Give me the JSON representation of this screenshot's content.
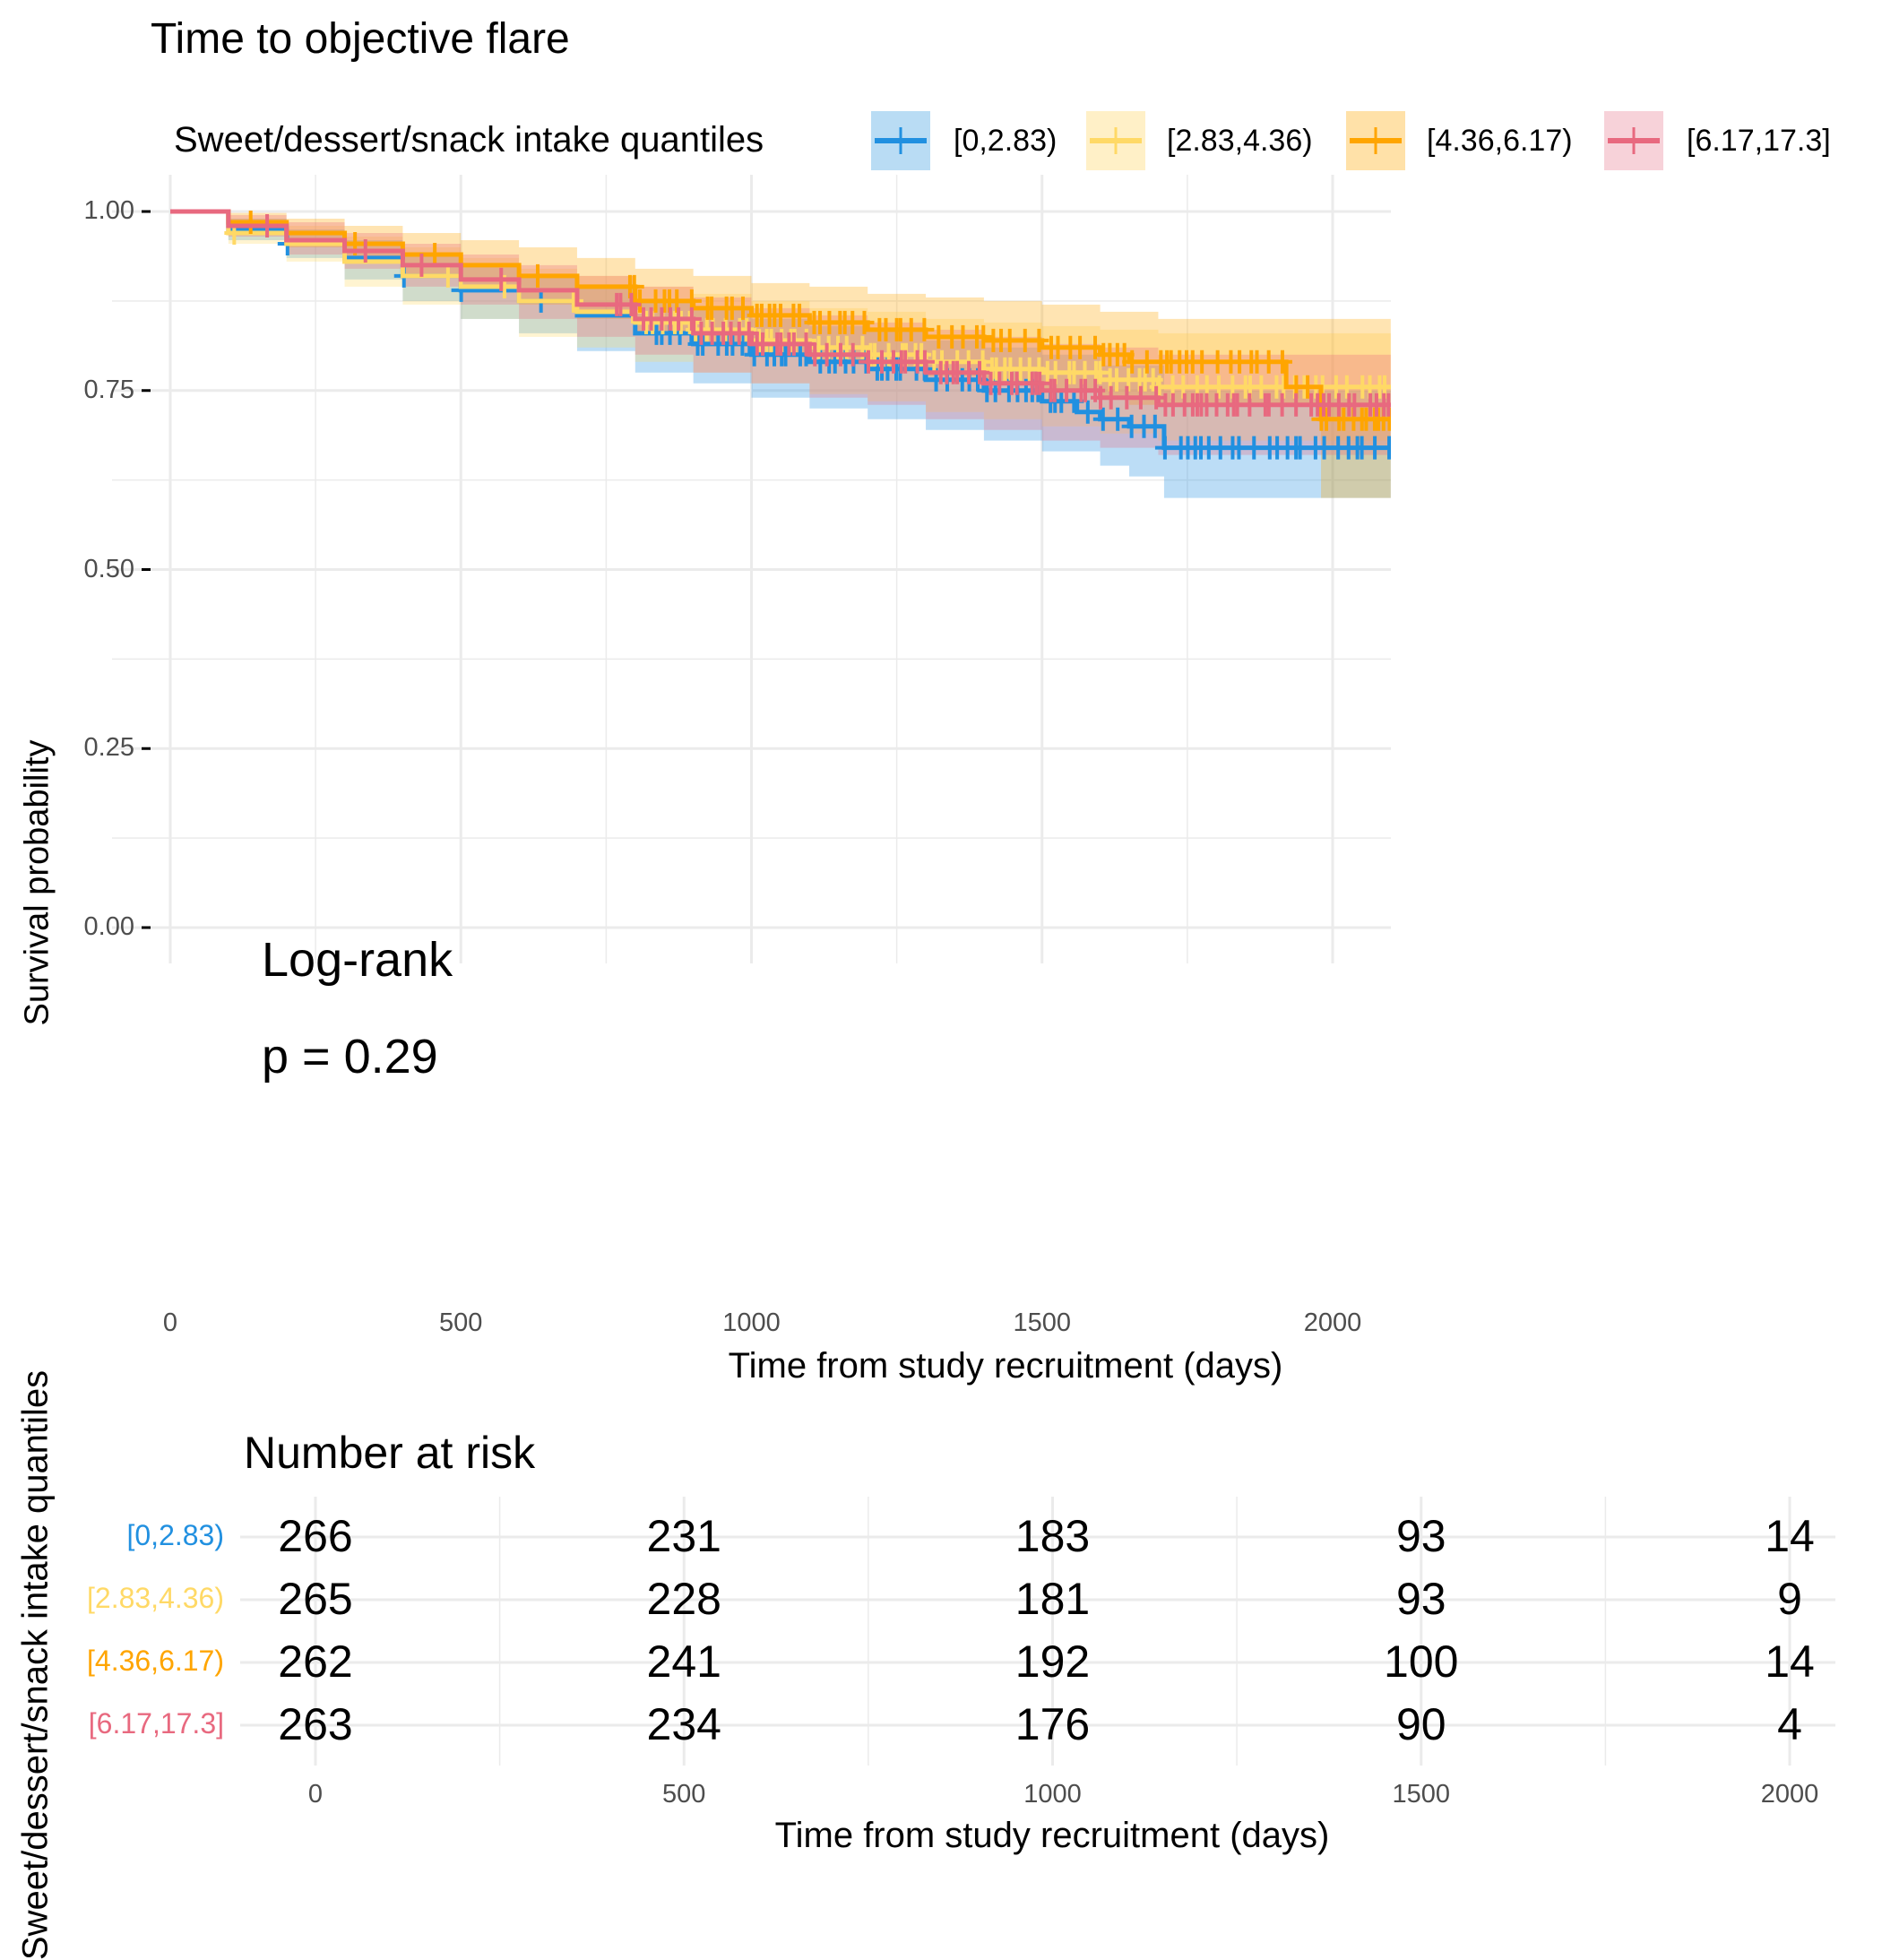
{
  "chart_data": {
    "type": "line",
    "subtype": "kaplan-meier",
    "title": "Time to objective flare",
    "legend": {
      "title": "Sweet/dessert/snack intake quantiles",
      "placement": "top"
    },
    "xlabel": "Time from study recruitment (days)",
    "ylabel": "Survival probability",
    "xlim": [
      -100,
      2100
    ],
    "ylim": [
      0,
      1
    ],
    "xticks": [
      "0",
      "500",
      "1000",
      "1500",
      "2000"
    ],
    "xtick_values": [
      0,
      500,
      1000,
      1500,
      2000
    ],
    "yticks": [
      "0.00",
      "0.25",
      "0.50",
      "0.75",
      "1.00"
    ],
    "ytick_values": [
      0,
      0.25,
      0.5,
      0.75,
      1.0
    ],
    "grid": true,
    "annotation": {
      "line1": "Log-rank",
      "line2": "p = 0.29"
    },
    "series": [
      {
        "name": "[0,2.83)",
        "color": "#2190E0",
        "band_color": "#B9DCF4",
        "points": [
          [
            0,
            1.0
          ],
          [
            100,
            0.975
          ],
          [
            200,
            0.955
          ],
          [
            300,
            0.935
          ],
          [
            400,
            0.91
          ],
          [
            500,
            0.89
          ],
          [
            600,
            0.875
          ],
          [
            700,
            0.855
          ],
          [
            800,
            0.83
          ],
          [
            900,
            0.815
          ],
          [
            1000,
            0.8
          ],
          [
            1100,
            0.79
          ],
          [
            1200,
            0.78
          ],
          [
            1300,
            0.765
          ],
          [
            1400,
            0.75
          ],
          [
            1500,
            0.735
          ],
          [
            1560,
            0.72
          ],
          [
            1600,
            0.71
          ],
          [
            1650,
            0.7
          ],
          [
            1710,
            0.67
          ],
          [
            2100,
            0.67
          ]
        ],
        "lower": [
          [
            0,
            1.0
          ],
          [
            100,
            0.96
          ],
          [
            200,
            0.935
          ],
          [
            300,
            0.905
          ],
          [
            400,
            0.875
          ],
          [
            500,
            0.85
          ],
          [
            600,
            0.83
          ],
          [
            700,
            0.805
          ],
          [
            800,
            0.775
          ],
          [
            900,
            0.76
          ],
          [
            1000,
            0.74
          ],
          [
            1100,
            0.725
          ],
          [
            1200,
            0.71
          ],
          [
            1300,
            0.695
          ],
          [
            1400,
            0.68
          ],
          [
            1500,
            0.665
          ],
          [
            1600,
            0.645
          ],
          [
            1650,
            0.63
          ],
          [
            1710,
            0.6
          ],
          [
            2100,
            0.6
          ]
        ],
        "upper": [
          [
            0,
            1.0
          ],
          [
            100,
            0.99
          ],
          [
            200,
            0.975
          ],
          [
            300,
            0.96
          ],
          [
            400,
            0.94
          ],
          [
            500,
            0.925
          ],
          [
            600,
            0.91
          ],
          [
            700,
            0.895
          ],
          [
            800,
            0.875
          ],
          [
            900,
            0.865
          ],
          [
            1000,
            0.85
          ],
          [
            1100,
            0.84
          ],
          [
            1200,
            0.835
          ],
          [
            1300,
            0.82
          ],
          [
            1400,
            0.81
          ],
          [
            1500,
            0.8
          ],
          [
            1600,
            0.785
          ],
          [
            1710,
            0.75
          ],
          [
            2100,
            0.75
          ]
        ]
      },
      {
        "name": "[2.83,4.36)",
        "color": "#FFD966",
        "band_color": "#FFF0C7",
        "points": [
          [
            0,
            1.0
          ],
          [
            100,
            0.97
          ],
          [
            200,
            0.955
          ],
          [
            300,
            0.93
          ],
          [
            400,
            0.91
          ],
          [
            500,
            0.895
          ],
          [
            600,
            0.875
          ],
          [
            700,
            0.86
          ],
          [
            800,
            0.845
          ],
          [
            900,
            0.835
          ],
          [
            1000,
            0.82
          ],
          [
            1100,
            0.81
          ],
          [
            1200,
            0.8
          ],
          [
            1300,
            0.79
          ],
          [
            1400,
            0.78
          ],
          [
            1500,
            0.775
          ],
          [
            1600,
            0.765
          ],
          [
            1700,
            0.755
          ],
          [
            2100,
            0.755
          ]
        ],
        "lower": [
          [
            0,
            1.0
          ],
          [
            100,
            0.955
          ],
          [
            200,
            0.93
          ],
          [
            300,
            0.895
          ],
          [
            400,
            0.87
          ],
          [
            500,
            0.85
          ],
          [
            600,
            0.825
          ],
          [
            700,
            0.81
          ],
          [
            800,
            0.79
          ],
          [
            900,
            0.775
          ],
          [
            1000,
            0.76
          ],
          [
            1100,
            0.745
          ],
          [
            1200,
            0.735
          ],
          [
            1300,
            0.72
          ],
          [
            1400,
            0.71
          ],
          [
            1500,
            0.7
          ],
          [
            1600,
            0.69
          ],
          [
            1700,
            0.68
          ],
          [
            2100,
            0.68
          ]
        ],
        "upper": [
          [
            0,
            1.0
          ],
          [
            100,
            0.99
          ],
          [
            200,
            0.98
          ],
          [
            300,
            0.965
          ],
          [
            400,
            0.95
          ],
          [
            500,
            0.935
          ],
          [
            600,
            0.92
          ],
          [
            700,
            0.91
          ],
          [
            800,
            0.895
          ],
          [
            900,
            0.885
          ],
          [
            1000,
            0.875
          ],
          [
            1100,
            0.865
          ],
          [
            1200,
            0.86
          ],
          [
            1300,
            0.85
          ],
          [
            1400,
            0.845
          ],
          [
            1500,
            0.84
          ],
          [
            1600,
            0.835
          ],
          [
            1700,
            0.83
          ],
          [
            2100,
            0.83
          ]
        ]
      },
      {
        "name": "[4.36,6.17)",
        "color": "#FFA500",
        "band_color": "#FFE1A8",
        "points": [
          [
            0,
            1.0
          ],
          [
            100,
            0.985
          ],
          [
            200,
            0.97
          ],
          [
            300,
            0.955
          ],
          [
            400,
            0.94
          ],
          [
            500,
            0.925
          ],
          [
            600,
            0.91
          ],
          [
            700,
            0.895
          ],
          [
            800,
            0.875
          ],
          [
            900,
            0.865
          ],
          [
            1000,
            0.855
          ],
          [
            1100,
            0.845
          ],
          [
            1200,
            0.835
          ],
          [
            1300,
            0.825
          ],
          [
            1400,
            0.82
          ],
          [
            1500,
            0.81
          ],
          [
            1600,
            0.8
          ],
          [
            1650,
            0.79
          ],
          [
            1910,
            0.79
          ],
          [
            1920,
            0.755
          ],
          [
            1980,
            0.71
          ],
          [
            2100,
            0.71
          ]
        ],
        "lower": [
          [
            0,
            1.0
          ],
          [
            100,
            0.97
          ],
          [
            200,
            0.95
          ],
          [
            300,
            0.93
          ],
          [
            400,
            0.91
          ],
          [
            500,
            0.89
          ],
          [
            600,
            0.87
          ],
          [
            700,
            0.85
          ],
          [
            800,
            0.83
          ],
          [
            900,
            0.815
          ],
          [
            1000,
            0.8
          ],
          [
            1100,
            0.79
          ],
          [
            1200,
            0.78
          ],
          [
            1300,
            0.77
          ],
          [
            1400,
            0.76
          ],
          [
            1500,
            0.75
          ],
          [
            1600,
            0.74
          ],
          [
            1650,
            0.73
          ],
          [
            1910,
            0.73
          ],
          [
            1980,
            0.6
          ],
          [
            2100,
            0.6
          ]
        ],
        "upper": [
          [
            0,
            1.0
          ],
          [
            100,
            0.998
          ],
          [
            200,
            0.99
          ],
          [
            300,
            0.98
          ],
          [
            400,
            0.97
          ],
          [
            500,
            0.96
          ],
          [
            600,
            0.95
          ],
          [
            700,
            0.935
          ],
          [
            800,
            0.92
          ],
          [
            900,
            0.91
          ],
          [
            1000,
            0.9
          ],
          [
            1100,
            0.895
          ],
          [
            1200,
            0.885
          ],
          [
            1300,
            0.88
          ],
          [
            1400,
            0.875
          ],
          [
            1500,
            0.87
          ],
          [
            1600,
            0.86
          ],
          [
            1700,
            0.85
          ],
          [
            2100,
            0.83
          ]
        ]
      },
      {
        "name": "[6.17,17.3]",
        "color": "#E8697F",
        "band_color": "#F7D2D9",
        "points": [
          [
            0,
            1.0
          ],
          [
            100,
            0.98
          ],
          [
            200,
            0.96
          ],
          [
            300,
            0.945
          ],
          [
            400,
            0.925
          ],
          [
            500,
            0.905
          ],
          [
            600,
            0.89
          ],
          [
            700,
            0.87
          ],
          [
            800,
            0.85
          ],
          [
            900,
            0.83
          ],
          [
            1000,
            0.815
          ],
          [
            1100,
            0.8
          ],
          [
            1200,
            0.79
          ],
          [
            1300,
            0.775
          ],
          [
            1400,
            0.76
          ],
          [
            1500,
            0.75
          ],
          [
            1600,
            0.74
          ],
          [
            1700,
            0.73
          ],
          [
            2100,
            0.73
          ]
        ],
        "lower": [
          [
            0,
            1.0
          ],
          [
            100,
            0.965
          ],
          [
            200,
            0.94
          ],
          [
            300,
            0.92
          ],
          [
            400,
            0.895
          ],
          [
            500,
            0.87
          ],
          [
            600,
            0.85
          ],
          [
            700,
            0.825
          ],
          [
            800,
            0.8
          ],
          [
            900,
            0.775
          ],
          [
            1000,
            0.76
          ],
          [
            1100,
            0.74
          ],
          [
            1200,
            0.73
          ],
          [
            1300,
            0.71
          ],
          [
            1400,
            0.695
          ],
          [
            1500,
            0.68
          ],
          [
            1600,
            0.67
          ],
          [
            1700,
            0.66
          ],
          [
            2100,
            0.66
          ]
        ],
        "upper": [
          [
            0,
            1.0
          ],
          [
            100,
            0.995
          ],
          [
            200,
            0.985
          ],
          [
            300,
            0.97
          ],
          [
            400,
            0.955
          ],
          [
            500,
            0.94
          ],
          [
            600,
            0.925
          ],
          [
            700,
            0.91
          ],
          [
            800,
            0.895
          ],
          [
            900,
            0.88
          ],
          [
            1000,
            0.865
          ],
          [
            1100,
            0.855
          ],
          [
            1200,
            0.845
          ],
          [
            1300,
            0.835
          ],
          [
            1400,
            0.825
          ],
          [
            1500,
            0.815
          ],
          [
            1600,
            0.81
          ],
          [
            1700,
            0.8
          ],
          [
            2100,
            0.8
          ]
        ]
      }
    ],
    "risk_table": {
      "title": "Number at risk",
      "ylabel": "Sweet/dessert/snack intake quantiles",
      "xlabel": "Time from study recruitment (days)",
      "times": [
        0,
        500,
        1000,
        1500,
        2000
      ],
      "time_labels": [
        "0",
        "500",
        "1000",
        "1500",
        "2000"
      ],
      "rows": [
        {
          "strata": "[0,2.83)",
          "color": "#2190E0",
          "values": [
            "266",
            "231",
            "183",
            "93",
            "14"
          ]
        },
        {
          "strata": "[2.83,4.36)",
          "color": "#FFD966",
          "values": [
            "265",
            "228",
            "181",
            "93",
            "9"
          ]
        },
        {
          "strata": "[4.36,6.17)",
          "color": "#FFA500",
          "values": [
            "262",
            "241",
            "192",
            "100",
            "14"
          ]
        },
        {
          "strata": "[6.17,17.3]",
          "color": "#E8697F",
          "values": [
            "263",
            "234",
            "176",
            "90",
            "4"
          ]
        }
      ]
    }
  }
}
